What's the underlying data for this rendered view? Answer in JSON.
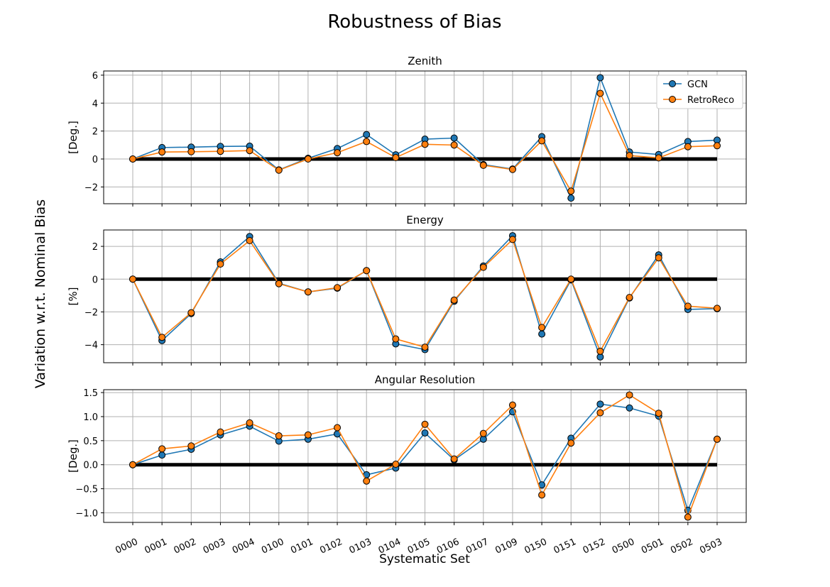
{
  "figure": {
    "title": "Robustness of Bias",
    "ylabel": "Variation w.r.t. Nominal Bias",
    "xlabel": "Systematic Set"
  },
  "colors": {
    "gcn": "#1f77b4",
    "retroreco": "#ff7f0e",
    "baseline": "#000000",
    "grid": "#b0b0b0"
  },
  "chart_data": [
    {
      "type": "line",
      "title": "Zenith",
      "ylabel": "[Deg.]",
      "categories": [
        "0000",
        "0001",
        "0002",
        "0003",
        "0004",
        "0100",
        "0101",
        "0102",
        "0103",
        "0104",
        "0105",
        "0106",
        "0107",
        "0109",
        "0150",
        "0151",
        "0152",
        "0500",
        "0501",
        "0502",
        "0503"
      ],
      "ylim": [
        -3.2,
        6.3
      ],
      "yticks": [
        -2,
        0,
        2,
        4,
        6
      ],
      "yticklabels": [
        "−2",
        "0",
        "2",
        "4",
        "6"
      ],
      "grid": true,
      "legend": "top-right",
      "baseline": 0,
      "series": [
        {
          "name": "GCN",
          "values": [
            0.0,
            0.82,
            0.85,
            0.9,
            0.92,
            -0.78,
            0.05,
            0.75,
            1.75,
            0.3,
            1.42,
            1.5,
            -0.4,
            -0.72,
            1.6,
            -2.8,
            5.82,
            0.5,
            0.32,
            1.25,
            1.35
          ]
        },
        {
          "name": "RetroReco",
          "values": [
            0.0,
            0.5,
            0.52,
            0.55,
            0.6,
            -0.8,
            0.0,
            0.45,
            1.25,
            0.1,
            1.05,
            1.0,
            -0.45,
            -0.75,
            1.3,
            -2.3,
            4.7,
            0.25,
            0.08,
            0.88,
            0.95
          ]
        }
      ]
    },
    {
      "type": "line",
      "title": "Energy",
      "ylabel": "[%]",
      "categories": [
        "0000",
        "0001",
        "0002",
        "0003",
        "0004",
        "0100",
        "0101",
        "0102",
        "0103",
        "0104",
        "0105",
        "0106",
        "0107",
        "0109",
        "0150",
        "0151",
        "0152",
        "0500",
        "0501",
        "0502",
        "0503"
      ],
      "ylim": [
        -5.1,
        3.0
      ],
      "yticks": [
        -4,
        -2,
        0,
        2
      ],
      "yticklabels": [
        "−4",
        "−2",
        "0",
        "2"
      ],
      "grid": true,
      "baseline": 0,
      "series": [
        {
          "name": "GCN",
          "values": [
            0.0,
            -3.75,
            -2.1,
            1.05,
            2.6,
            -0.25,
            -0.78,
            -0.55,
            0.52,
            -3.95,
            -4.3,
            -1.35,
            0.8,
            2.65,
            -3.35,
            -0.05,
            -4.75,
            -1.15,
            1.48,
            -1.85,
            -1.8
          ]
        },
        {
          "name": "RetroReco",
          "values": [
            0.0,
            -3.55,
            -2.05,
            0.92,
            2.35,
            -0.28,
            -0.78,
            -0.52,
            0.52,
            -3.65,
            -4.15,
            -1.28,
            0.72,
            2.42,
            -2.95,
            0.0,
            -4.4,
            -1.12,
            1.3,
            -1.65,
            -1.78
          ]
        }
      ]
    },
    {
      "type": "line",
      "title": "Angular Resolution",
      "ylabel": "[Deg.]",
      "categories": [
        "0000",
        "0001",
        "0002",
        "0003",
        "0004",
        "0100",
        "0101",
        "0102",
        "0103",
        "0104",
        "0105",
        "0106",
        "0107",
        "0109",
        "0150",
        "0151",
        "0152",
        "0500",
        "0501",
        "0502",
        "0503"
      ],
      "ylim": [
        -1.2,
        1.56
      ],
      "yticks": [
        -1.0,
        -0.5,
        0.0,
        0.5,
        1.0,
        1.5
      ],
      "yticklabels": [
        "−1.0",
        "−0.5",
        "0.0",
        "0.5",
        "1.0",
        "1.5"
      ],
      "grid": true,
      "baseline": 0,
      "series": [
        {
          "name": "GCN",
          "values": [
            0.0,
            0.2,
            0.32,
            0.62,
            0.8,
            0.49,
            0.53,
            0.64,
            -0.21,
            -0.07,
            0.66,
            0.1,
            0.53,
            1.1,
            -0.42,
            0.55,
            1.26,
            1.18,
            1.01,
            -0.95,
            0.53
          ]
        },
        {
          "name": "RetroReco",
          "values": [
            0.0,
            0.33,
            0.39,
            0.68,
            0.87,
            0.6,
            0.62,
            0.77,
            -0.34,
            0.01,
            0.84,
            0.12,
            0.65,
            1.24,
            -0.63,
            0.45,
            1.08,
            1.45,
            1.07,
            -1.09,
            0.53
          ]
        }
      ]
    }
  ]
}
